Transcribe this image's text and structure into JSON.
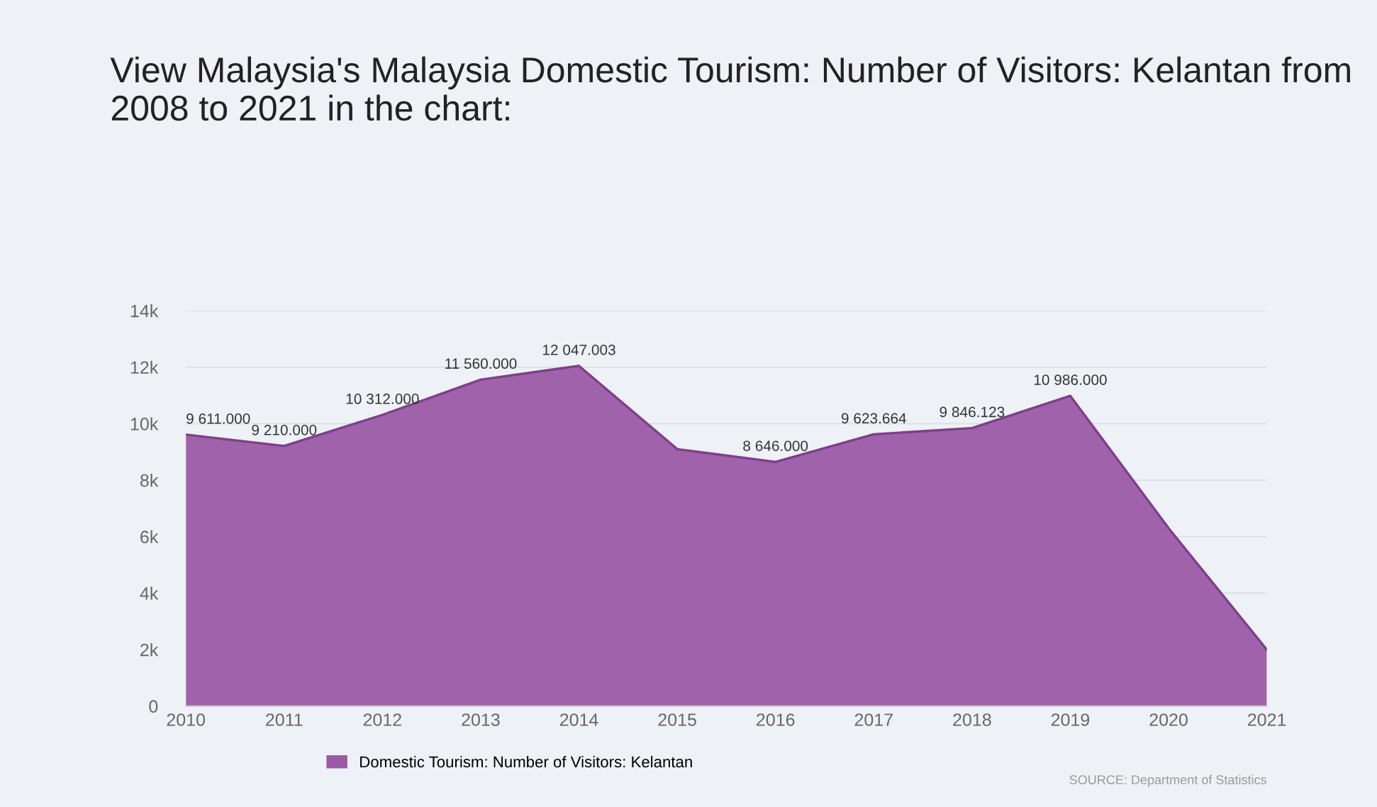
{
  "chart_data": {
    "type": "area",
    "title": "View Malaysia's Malaysia Domestic Tourism: Number of Visitors: Kelantan from 2008 to 2021 in the chart:",
    "categories": [
      "2010",
      "2011",
      "2012",
      "2013",
      "2014",
      "2015",
      "2016",
      "2017",
      "2018",
      "2019",
      "2020",
      "2021"
    ],
    "series": [
      {
        "name": "Domestic Tourism: Number of Visitors: Kelantan",
        "color": "#9a5aa6",
        "values": [
          9611,
          9210,
          10312,
          11560,
          12047.003,
          9100,
          8646,
          9623.664,
          9846.123,
          10986,
          6300,
          2000
        ],
        "value_labels": [
          "9 611.000",
          "9 210.000",
          "10 312.000",
          "11 560.000",
          "12 047.003",
          null,
          "8 646.000",
          "9 623.664",
          "9 846.123",
          "10 986.000",
          null,
          null
        ]
      }
    ],
    "ylim": [
      0,
      14000
    ],
    "yticks": [
      0,
      {
        "value": 2000,
        "label": "2k"
      },
      {
        "value": 4000,
        "label": "4k"
      },
      {
        "value": 6000,
        "label": "6k"
      },
      {
        "value": 8000,
        "label": "8k"
      },
      {
        "value": 10000,
        "label": "10k"
      },
      {
        "value": 12000,
        "label": "12k"
      },
      {
        "value": 14000,
        "label": "14k"
      }
    ],
    "grid": "y",
    "legend": "bottom",
    "annotations": [
      "SOURCE: Department of Statistics"
    ]
  }
}
